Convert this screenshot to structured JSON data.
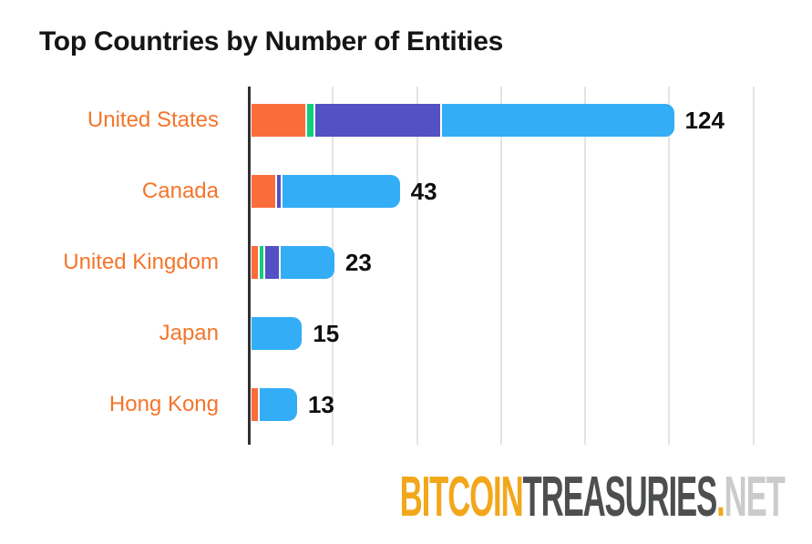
{
  "title": "Top Countries by Number of Entities",
  "watermark": {
    "bitcoin": "BITCOIN",
    "treasuries": "TREASURIES",
    "dot": ".",
    "net": "NET"
  },
  "chart_data": {
    "type": "bar",
    "orientation": "horizontal",
    "title": "Top Countries by Number of Entities",
    "categories": [
      "United States",
      "Canada",
      "United Kingdom",
      "Japan",
      "Hong Kong"
    ],
    "totals": [
      124,
      43,
      23,
      15,
      13
    ],
    "series": [
      {
        "name": "orange-segment",
        "color": "#FB6C3B",
        "values": [
          16,
          7,
          2,
          0,
          2
        ]
      },
      {
        "name": "green-segment",
        "color": "#11CE7C",
        "values": [
          2,
          0,
          1,
          0,
          0
        ]
      },
      {
        "name": "violet-segment",
        "color": "#5351C4",
        "values": [
          37,
          1,
          4,
          0,
          0
        ]
      },
      {
        "name": "blue-segment",
        "color": "#32ADF6",
        "values": [
          69,
          35,
          16,
          15,
          11
        ]
      }
    ],
    "xlim": [
      0,
      150
    ],
    "gridline_interval": 25,
    "grid": true,
    "legend": false,
    "category_label_color": "#F4752B",
    "axis_color": "#303030",
    "gridline_color": "#E4E4E4",
    "value_label_color": "#0D0D0D"
  }
}
